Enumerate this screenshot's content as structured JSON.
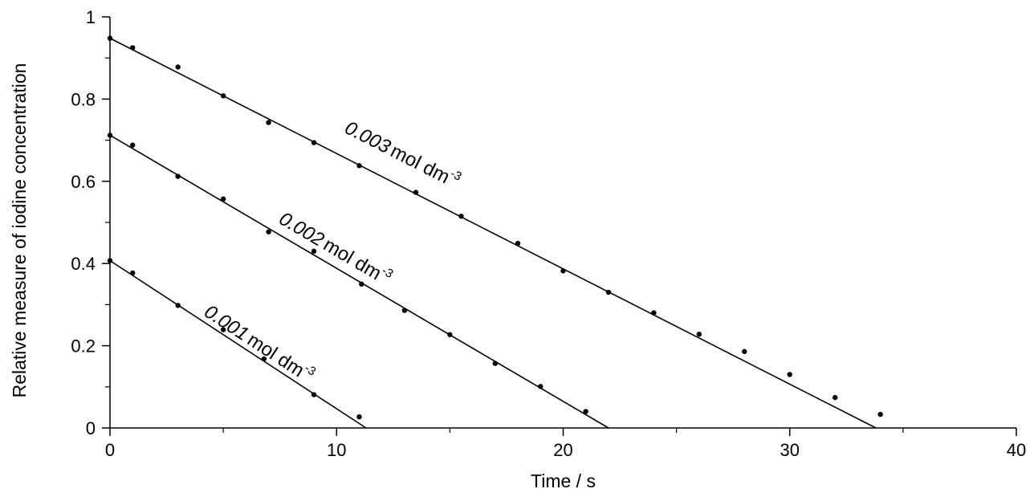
{
  "chart_data": {
    "type": "scatter",
    "title": "",
    "xlabel": "Time / s",
    "ylabel": "Relative measure of iodine concentration",
    "xlim": [
      0,
      40
    ],
    "ylim": [
      0,
      1
    ],
    "x_ticks": [
      0,
      10,
      20,
      30,
      40
    ],
    "y_ticks": [
      0,
      0.2,
      0.4,
      0.6,
      0.8,
      1
    ],
    "x_tick_labels": [
      "0",
      "10",
      "20",
      "30",
      "40"
    ],
    "y_tick_labels": [
      "0",
      "0.2",
      "0.4",
      "0.6",
      "0.8",
      "1"
    ],
    "grid": false,
    "legend": "none",
    "series": [
      {
        "name": "0.003 mol dm-3",
        "label_value": "0.003",
        "label_unit": "mol dm",
        "label_exp": "-3",
        "color": "#000000",
        "fit_line": [
          [
            0,
            0.948
          ],
          [
            33.8,
            0
          ]
        ],
        "points": [
          [
            0,
            0.948
          ],
          [
            1,
            0.925
          ],
          [
            3,
            0.878
          ],
          [
            5,
            0.808
          ],
          [
            7,
            0.743
          ],
          [
            9,
            0.694
          ],
          [
            11,
            0.638
          ],
          [
            13.5,
            0.573
          ],
          [
            15.5,
            0.515
          ],
          [
            18,
            0.449
          ],
          [
            20,
            0.382
          ],
          [
            22,
            0.33
          ],
          [
            24,
            0.28
          ],
          [
            26,
            0.228
          ],
          [
            28,
            0.186
          ],
          [
            30,
            0.13
          ],
          [
            32,
            0.074
          ],
          [
            34,
            0.033
          ]
        ],
        "label_anchor": [
          10.3,
          0.72
        ]
      },
      {
        "name": "0.002 mol dm-3",
        "label_value": "0.002",
        "label_unit": "mol dm",
        "label_exp": "-3",
        "color": "#000000",
        "fit_line": [
          [
            0,
            0.712
          ],
          [
            22,
            0
          ]
        ],
        "points": [
          [
            0,
            0.712
          ],
          [
            1,
            0.688
          ],
          [
            3,
            0.612
          ],
          [
            5,
            0.557
          ],
          [
            7,
            0.477
          ],
          [
            9,
            0.43
          ],
          [
            11.1,
            0.35
          ],
          [
            13,
            0.286
          ],
          [
            15,
            0.227
          ],
          [
            17,
            0.157
          ],
          [
            19,
            0.101
          ],
          [
            21,
            0.04
          ]
        ],
        "label_anchor": [
          7.4,
          0.5
        ]
      },
      {
        "name": "0.001 mol dm-3",
        "label_value": "0.001",
        "label_unit": "mol dm",
        "label_exp": "-3",
        "color": "#000000",
        "fit_line": [
          [
            0,
            0.407
          ],
          [
            11.3,
            0
          ]
        ],
        "points": [
          [
            0,
            0.407
          ],
          [
            1,
            0.377
          ],
          [
            3,
            0.298
          ],
          [
            5,
            0.239
          ],
          [
            6.8,
            0.168
          ],
          [
            9,
            0.081
          ],
          [
            11,
            0.027
          ]
        ],
        "label_anchor": [
          4.1,
          0.275
        ]
      }
    ]
  }
}
